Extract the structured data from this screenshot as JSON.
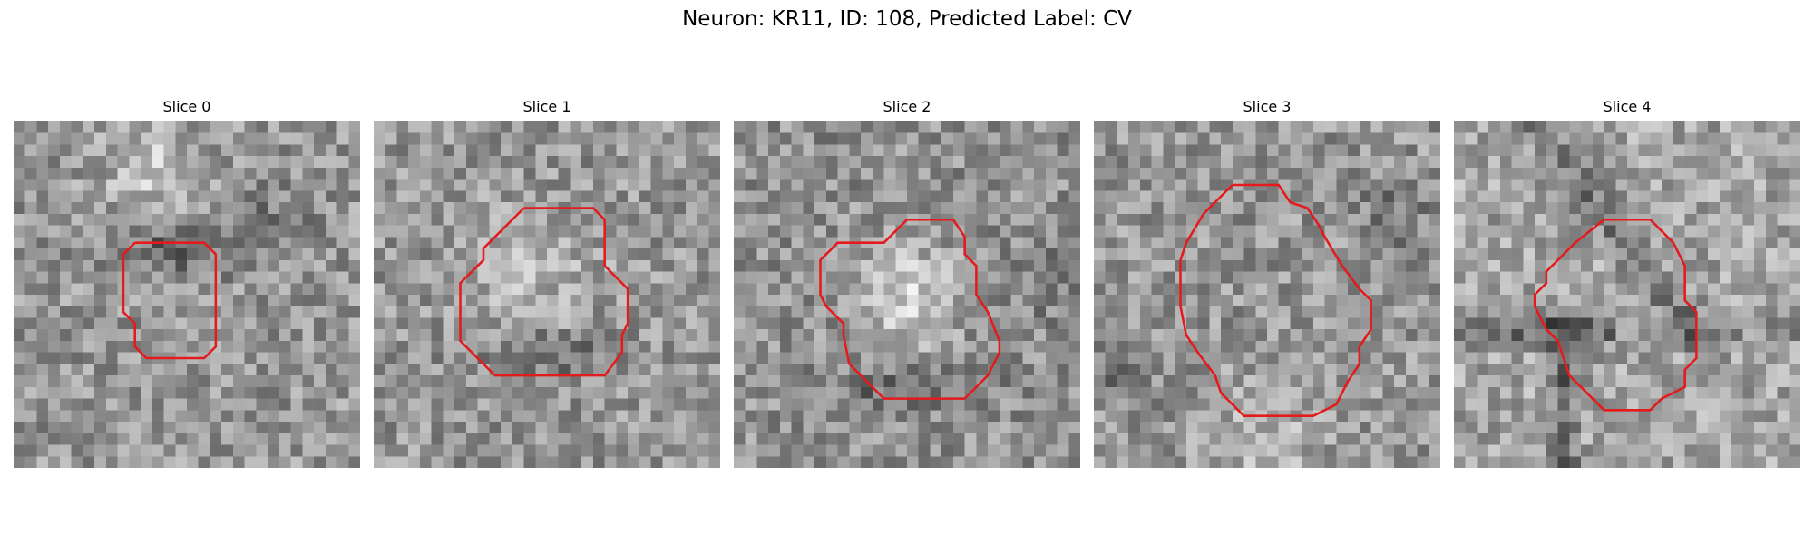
{
  "figure": {
    "title": "Neuron: KR11, ID: 108, Predicted Label: CV"
  },
  "slices": [
    {
      "title": "Slice 0"
    },
    {
      "title": "Slice 1"
    },
    {
      "title": "Slice 2"
    },
    {
      "title": "Slice 3"
    },
    {
      "title": "Slice 4"
    }
  ],
  "colors": {
    "outline": "#e41a1c",
    "background": "#ffffff",
    "colormap": "gray"
  }
}
